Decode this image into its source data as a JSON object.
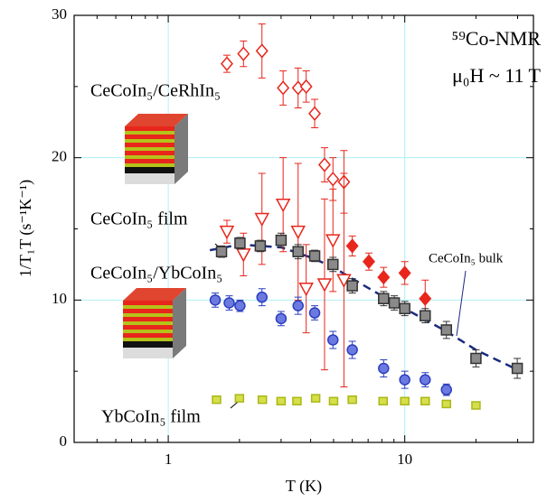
{
  "chart_data": {
    "type": "scatter",
    "title": "⁵⁹Co-NMR",
    "subtitle": "μ₀H ~ 11 T",
    "x_label": "T (K)",
    "y_label": "1/T₁T (s⁻¹K⁻¹)",
    "xlim": [
      0.4,
      35
    ],
    "ylim": [
      0,
      30
    ],
    "xlog": true,
    "xticks": [
      1,
      10
    ],
    "xminorticks": [
      0.4,
      0.5,
      0.6,
      0.7,
      0.8,
      0.9,
      2,
      3,
      4,
      5,
      6,
      7,
      8,
      9,
      20,
      30
    ],
    "yticks": [
      0,
      10,
      20,
      30
    ],
    "yminorticks": [
      5,
      15,
      25
    ],
    "grid": true,
    "series": [
      {
        "name": "CeCoIn₅/CeRhIn₅",
        "color": "#e8261c",
        "marker": "diamond",
        "x": [
          1.77,
          2.08,
          2.49,
          3.06,
          3.54,
          3.83,
          4.16,
          4.58,
          4.97,
          5.53
        ],
        "values": [
          26.6,
          27.3,
          27.5,
          24.9,
          24.9,
          25.0,
          23.1,
          19.5,
          18.5,
          18.3
        ],
        "errors": [
          0.6,
          0.9,
          1.9,
          1.2,
          1.4,
          1.1,
          1.0,
          1.2,
          1.5,
          2.2
        ]
      },
      {
        "name": "CeCoIn₅ film",
        "color": "#e8261c",
        "marker": [
          "triangle",
          "triangle",
          "triangle",
          "triangle",
          "triangle",
          "triangle",
          "triangle",
          "triangle",
          "triangle",
          "diamond-filled",
          "diamond-filled",
          "diamond-filled",
          "diamond-filled",
          "diamond-filled"
        ],
        "x": [
          1.77,
          2.08,
          2.49,
          3.06,
          3.54,
          3.83,
          4.58,
          4.97,
          5.53,
          6.0,
          7.05,
          8.14,
          10,
          12.2
        ],
        "values": [
          14.8,
          13.2,
          15.7,
          16.7,
          14.8,
          10.8,
          11.1,
          14.2,
          11.4,
          13.8,
          12.7,
          11.6,
          11.9,
          10.1
        ],
        "errors": [
          0.8,
          1.5,
          3.2,
          3.3,
          4.8,
          3.1,
          6.0,
          3.6,
          7.5,
          0.7,
          0.6,
          0.7,
          0.8,
          1.3
        ]
      },
      {
        "name": "CeCoIn₅/YbCoIn₅",
        "color": "#2b3fbf",
        "marker": "circle",
        "x": [
          1.58,
          1.81,
          2.01,
          2.49,
          3.0,
          3.54,
          4.16,
          4.97,
          6.0,
          8.14,
          10,
          12.2,
          15
        ],
        "values": [
          10.0,
          9.8,
          9.6,
          10.2,
          8.7,
          9.6,
          9.1,
          7.2,
          6.5,
          5.2,
          4.4,
          4.4,
          3.7
        ],
        "errors": [
          0.5,
          0.5,
          0.4,
          0.6,
          0.5,
          0.6,
          0.5,
          0.6,
          0.6,
          0.6,
          0.6,
          0.5,
          0.4
        ]
      },
      {
        "name": "CeCoIn₅ bulk",
        "color": "#555555",
        "marker": "square",
        "x": [
          1.68,
          2.01,
          2.45,
          3.0,
          3.54,
          4.16,
          4.97,
          6.0,
          8.14,
          9.03,
          10,
          12.2,
          15,
          20,
          29.9
        ],
        "values": [
          13.4,
          14.0,
          13.8,
          14.2,
          13.4,
          13.1,
          12.5,
          11.0,
          10.1,
          9.8,
          9.4,
          8.9,
          7.9,
          5.9,
          5.2
        ],
        "errors": [
          0.4,
          0.4,
          0.4,
          0.5,
          0.5,
          0.4,
          0.5,
          0.5,
          0.5,
          0.5,
          0.5,
          0.5,
          0.6,
          0.6,
          0.7
        ]
      },
      {
        "name": "YbCoIn₅ film",
        "color": "#a8b817",
        "marker": "square-small",
        "x": [
          1.6,
          2.0,
          2.5,
          3.0,
          3.5,
          4.2,
          5.0,
          6.0,
          8.1,
          10,
          12.2,
          15,
          20
        ],
        "values": [
          3.0,
          3.1,
          3.0,
          2.9,
          2.9,
          3.1,
          2.9,
          3.0,
          2.9,
          2.9,
          2.9,
          2.7,
          2.6
        ]
      }
    ],
    "fit": {
      "color": "#1a2a80",
      "x": [
        1.5,
        2,
        3,
        4,
        5,
        6,
        8,
        10,
        15,
        20,
        30
      ],
      "values": [
        13.5,
        13.9,
        13.7,
        13.0,
        12.3,
        11.5,
        10.3,
        9.4,
        7.8,
        6.5,
        5.1
      ]
    }
  }
}
